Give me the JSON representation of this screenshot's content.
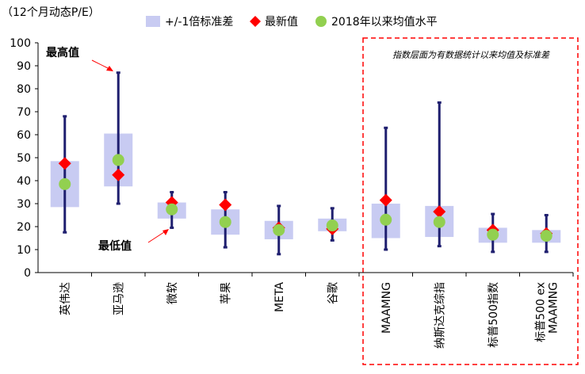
{
  "chart_data": {
    "type": "box-range",
    "ylabel": "（12个月动态P/E）",
    "ylim": [
      0,
      100
    ],
    "yticks": [
      0,
      10,
      20,
      30,
      40,
      50,
      60,
      70,
      80,
      90,
      100
    ],
    "legend": {
      "placement": "top",
      "items": [
        {
          "key": "band",
          "label": "+/-1倍标准差",
          "color": "#c8cbf2"
        },
        {
          "key": "latest",
          "label": "最新值",
          "color": "#ff0000"
        },
        {
          "key": "mean",
          "label": "2018年以来均值水平",
          "color": "#92d050"
        }
      ]
    },
    "categories": [
      "英伟达",
      "亚马逊",
      "微软",
      "苹果",
      "META",
      "谷歌",
      "MAAMNG",
      "纳斯达克综指",
      "标普500指数",
      "标普500 ex MAAMNG"
    ],
    "series": [
      {
        "name": "最高值",
        "values": [
          68,
          87,
          35,
          35,
          29,
          28,
          63,
          74,
          25.5,
          25
        ]
      },
      {
        "name": "最低值",
        "values": [
          17.5,
          30,
          19.5,
          11,
          8,
          14,
          10,
          11.5,
          9,
          9
        ]
      },
      {
        "name": "+/-1倍标准差上限",
        "values": [
          48.5,
          60.5,
          30.5,
          27.5,
          22.5,
          23.5,
          30,
          29,
          19.5,
          18.5
        ]
      },
      {
        "name": "+/-1倍标准差下限",
        "values": [
          28.5,
          37.5,
          23.5,
          16.5,
          14.5,
          18,
          15,
          15.5,
          13,
          13
        ]
      },
      {
        "name": "最新值",
        "values": [
          47.5,
          42.5,
          30.5,
          29.5,
          19.5,
          19,
          31.5,
          26.5,
          18.5,
          17
        ]
      },
      {
        "name": "2018年以来均值水平",
        "values": [
          38.5,
          49,
          27.5,
          22,
          18.5,
          20.5,
          23,
          22,
          16.5,
          16
        ]
      }
    ],
    "annotations": {
      "max_label": "最高值",
      "min_label": "最低值",
      "box_title": "指数层面为有数据统计以来均值及标准差"
    },
    "colors": {
      "whisker": "#1f1f6f",
      "box_border": "#ff0000"
    }
  }
}
